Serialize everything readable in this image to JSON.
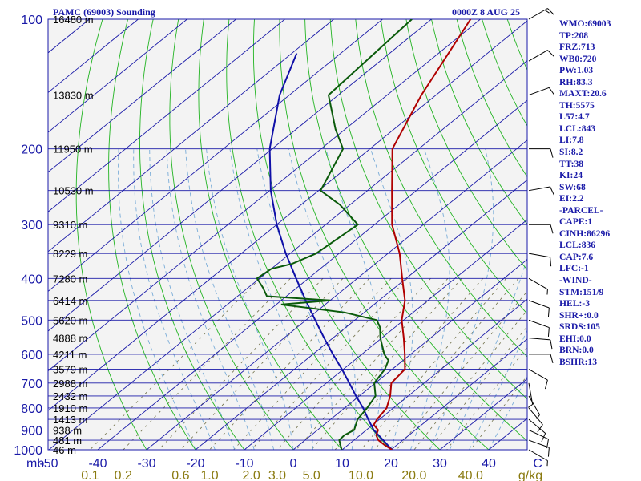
{
  "header": {
    "title": "PAMC (69003) Sounding",
    "time": "0000Z  8 AUG 25"
  },
  "chart_data": {
    "type": "skew-t",
    "pressure_ticks": [
      "100",
      "200",
      "300",
      "400",
      "500",
      "600",
      "700",
      "800",
      "900",
      "1000"
    ],
    "pressure_unit": "mb",
    "temperature_ticks": [
      "-50",
      "-40",
      "-30",
      "-20",
      "-10",
      "0",
      "10",
      "20",
      "30",
      "40",
      "C"
    ],
    "mixing_ratio_ticks": [
      "0.1",
      "0.2",
      "0.6",
      "1.0",
      "2.0",
      "3.0",
      "5.0",
      "10.0",
      "20.0",
      "40.0",
      "g/kg"
    ],
    "height_labels": [
      {
        "p": 100,
        "label": "16480 m"
      },
      {
        "p": 150,
        "label": "13830 m"
      },
      {
        "p": 200,
        "label": "11950 m"
      },
      {
        "p": 250,
        "label": "10530 m"
      },
      {
        "p": 300,
        "label": "9310 m"
      },
      {
        "p": 350,
        "label": "8229 m"
      },
      {
        "p": 400,
        "label": "7280 m"
      },
      {
        "p": 450,
        "label": "6414 m"
      },
      {
        "p": 500,
        "label": "5620 m"
      },
      {
        "p": 550,
        "label": "4888 m"
      },
      {
        "p": 600,
        "label": "4211 m"
      },
      {
        "p": 650,
        "label": "3579 m"
      },
      {
        "p": 700,
        "label": "2988 m"
      },
      {
        "p": 750,
        "label": "2432 m"
      },
      {
        "p": 800,
        "label": "1910 m"
      },
      {
        "p": 850,
        "label": "1413 m"
      },
      {
        "p": 900,
        "label": "938 m"
      },
      {
        "p": 950,
        "label": "481 m"
      },
      {
        "p": 1000,
        "label": "46 m"
      }
    ],
    "temperature_profile": [
      [
        1000,
        20.2
      ],
      [
        975,
        17.5
      ],
      [
        950,
        15.0
      ],
      [
        925,
        13.3
      ],
      [
        900,
        12.4
      ],
      [
        875,
        10.2
      ],
      [
        850,
        9.5
      ],
      [
        800,
        8.6
      ],
      [
        750,
        6.3
      ],
      [
        700,
        3.3
      ],
      [
        650,
        2.6
      ],
      [
        600,
        -1.2
      ],
      [
        550,
        -5.5
      ],
      [
        500,
        -10.4
      ],
      [
        450,
        -14.7
      ],
      [
        400,
        -20.8
      ],
      [
        350,
        -27.6
      ],
      [
        300,
        -36.4
      ],
      [
        250,
        -45.0
      ],
      [
        200,
        -55.4
      ],
      [
        150,
        -63.0
      ],
      [
        100,
        -72.0
      ]
    ],
    "dewpoint_profile": [
      [
        1000,
        9.9
      ],
      [
        950,
        7.0
      ],
      [
        925,
        6.8
      ],
      [
        900,
        7.5
      ],
      [
        850,
        5.5
      ],
      [
        800,
        4.6
      ],
      [
        750,
        3.3
      ],
      [
        700,
        -0.2
      ],
      [
        650,
        -1.5
      ],
      [
        620,
        -3.0
      ],
      [
        600,
        -5.4
      ],
      [
        550,
        -10.3
      ],
      [
        520,
        -13.0
      ],
      [
        500,
        -15.5
      ],
      [
        480,
        -24.0
      ],
      [
        460,
        -39.0
      ],
      [
        450,
        -30.0
      ],
      [
        440,
        -44.0
      ],
      [
        420,
        -47.0
      ],
      [
        400,
        -50.5
      ],
      [
        380,
        -50.0
      ],
      [
        370,
        -47.0
      ],
      [
        350,
        -44.7
      ],
      [
        300,
        -43.4
      ],
      [
        270,
        -52.0
      ],
      [
        250,
        -59.6
      ],
      [
        200,
        -65.5
      ],
      [
        180,
        -72.0
      ],
      [
        150,
        -82.0
      ],
      [
        100,
        -84.0
      ]
    ],
    "parcel_path": [
      [
        1000,
        20.2
      ],
      [
        950,
        16.0
      ],
      [
        900,
        11.5
      ],
      [
        850,
        7.7
      ],
      [
        800,
        3.8
      ],
      [
        750,
        -0.7
      ],
      [
        700,
        -5.3
      ],
      [
        650,
        -10.3
      ],
      [
        600,
        -15.9
      ],
      [
        550,
        -21.8
      ],
      [
        500,
        -28.1
      ],
      [
        450,
        -35.0
      ],
      [
        400,
        -42.5
      ],
      [
        350,
        -50.9
      ],
      [
        300,
        -60.0
      ],
      [
        250,
        -69.8
      ],
      [
        200,
        -80.5
      ],
      [
        150,
        -92.0
      ],
      [
        120,
        -99.0
      ]
    ],
    "wind_barbs": [
      {
        "p": 1000,
        "dir": 120,
        "spd": 5
      },
      {
        "p": 950,
        "dir": 110,
        "spd": 10
      },
      {
        "p": 900,
        "dir": 115,
        "spd": 10
      },
      {
        "p": 850,
        "dir": 130,
        "spd": 10
      },
      {
        "p": 800,
        "dir": 140,
        "spd": 10
      },
      {
        "p": 750,
        "dir": 150,
        "spd": 5
      },
      {
        "p": 700,
        "dir": 170,
        "spd": 5
      },
      {
        "p": 650,
        "dir": 120,
        "spd": 10
      },
      {
        "p": 600,
        "dir": 90,
        "spd": 10
      },
      {
        "p": 550,
        "dir": 95,
        "spd": 10
      },
      {
        "p": 500,
        "dir": 110,
        "spd": 10
      },
      {
        "p": 450,
        "dir": 110,
        "spd": 10
      },
      {
        "p": 400,
        "dir": 120,
        "spd": 5
      },
      {
        "p": 350,
        "dir": 100,
        "spd": 10
      },
      {
        "p": 300,
        "dir": 90,
        "spd": 10
      },
      {
        "p": 250,
        "dir": 80,
        "spd": 10
      },
      {
        "p": 200,
        "dir": 90,
        "spd": 10
      },
      {
        "p": 150,
        "dir": 70,
        "spd": 10
      },
      {
        "p": 125,
        "dir": 60,
        "spd": 10
      },
      {
        "p": 100,
        "dir": 60,
        "spd": 15
      }
    ],
    "colors": {
      "isobar": "#1a1aa8",
      "isotherm": "#1a1aa8",
      "dry_adiabat": "#22b422",
      "moist_adiabat": "#79acd8",
      "mixing_ratio": "#6f6f48",
      "temperature": "#b00000",
      "dewpoint": "#0a5a0a",
      "parcel": "#1010a8",
      "wind": "#000000",
      "labels": "#1a1aa8",
      "mixing_labels": "#8a7a10",
      "background": "#f3f3f3"
    }
  },
  "indices": [
    "WMO:69003",
    "TP:208",
    "FRZ:713",
    "WB0:720",
    "PW:1.03",
    "RH:83.3",
    "MAXT:20.6",
    "TH:5575",
    "L57:4.7",
    "LCL:843",
    "LI:7.8",
    "SI:8.2",
    "TT:38",
    "KI:24",
    "SW:68",
    "EI:2.2",
    "-PARCEL-",
    "CAPE:1",
    "CINH:86296",
    "LCL:836",
    "CAP:7.6",
    "LFC:-1",
    "-WIND-",
    "STM:151/9",
    "HEL:-3",
    "SHR+:0.0",
    "SRDS:105",
    "EHI:0.0",
    "BRN:0.0",
    "BSHR:13"
  ]
}
